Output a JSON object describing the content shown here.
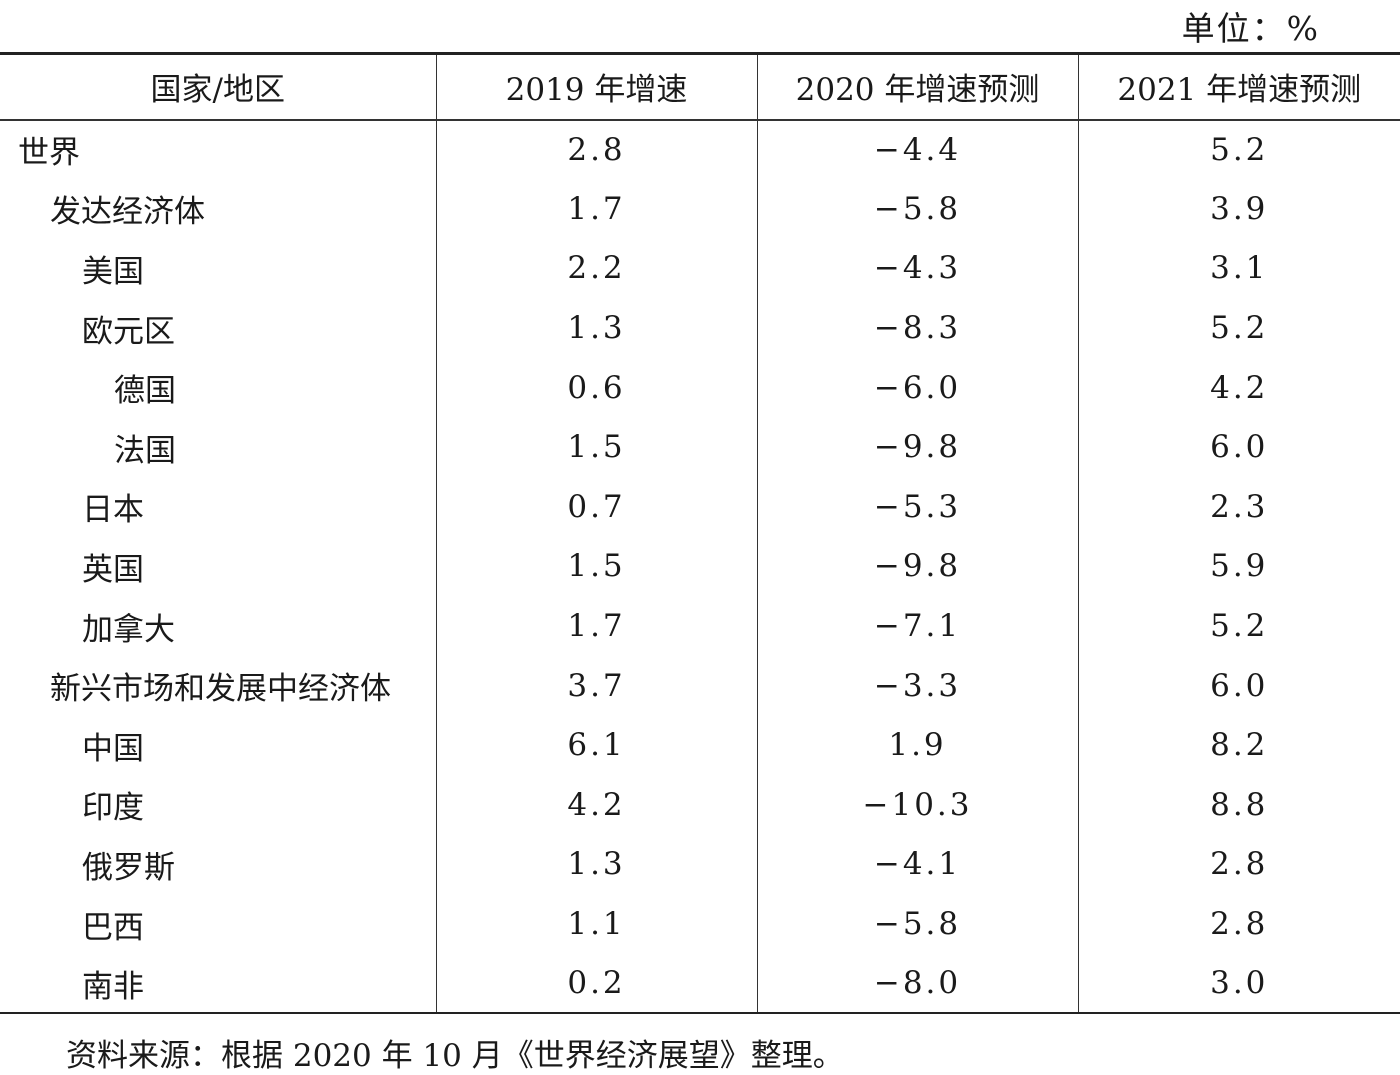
{
  "unit_label": "单位：%",
  "headers": [
    "国家/地区",
    "2019 年增速",
    "2020 年增速预测",
    "2021 年增速预测"
  ],
  "rows": [
    {
      "name": "世界",
      "level": 0,
      "v2019": "2.8",
      "v2020": "−4.4",
      "v2021": "5.2"
    },
    {
      "name": "发达经济体",
      "level": 1,
      "v2019": "1.7",
      "v2020": "−5.8",
      "v2021": "3.9"
    },
    {
      "name": "美国",
      "level": 2,
      "v2019": "2.2",
      "v2020": "−4.3",
      "v2021": "3.1"
    },
    {
      "name": "欧元区",
      "level": 2,
      "v2019": "1.3",
      "v2020": "−8.3",
      "v2021": "5.2"
    },
    {
      "name": "德国",
      "level": 3,
      "v2019": "0.6",
      "v2020": "−6.0",
      "v2021": "4.2"
    },
    {
      "name": "法国",
      "level": 3,
      "v2019": "1.5",
      "v2020": "−9.8",
      "v2021": "6.0"
    },
    {
      "name": "日本",
      "level": 2,
      "v2019": "0.7",
      "v2020": "−5.3",
      "v2021": "2.3"
    },
    {
      "name": "英国",
      "level": 2,
      "v2019": "1.5",
      "v2020": "−9.8",
      "v2021": "5.9"
    },
    {
      "name": "加拿大",
      "level": 2,
      "v2019": "1.7",
      "v2020": "−7.1",
      "v2021": "5.2"
    },
    {
      "name": "新兴市场和发展中经济体",
      "level": 1,
      "v2019": "3.7",
      "v2020": "−3.3",
      "v2021": "6.0"
    },
    {
      "name": "中国",
      "level": 2,
      "v2019": "6.1",
      "v2020": "1.9",
      "v2021": "8.2"
    },
    {
      "name": "印度",
      "level": 2,
      "v2019": "4.2",
      "v2020": "−10.3",
      "v2021": "8.8"
    },
    {
      "name": "俄罗斯",
      "level": 2,
      "v2019": "1.3",
      "v2020": "−4.1",
      "v2021": "2.8"
    },
    {
      "name": "巴西",
      "level": 2,
      "v2019": "1.1",
      "v2020": "−5.8",
      "v2021": "2.8"
    },
    {
      "name": "南非",
      "level": 2,
      "v2019": "0.2",
      "v2020": "−8.0",
      "v2021": "3.0"
    }
  ],
  "source_note": "资料来源：根据 2020 年 10 月《世界经济展望》整理。"
}
